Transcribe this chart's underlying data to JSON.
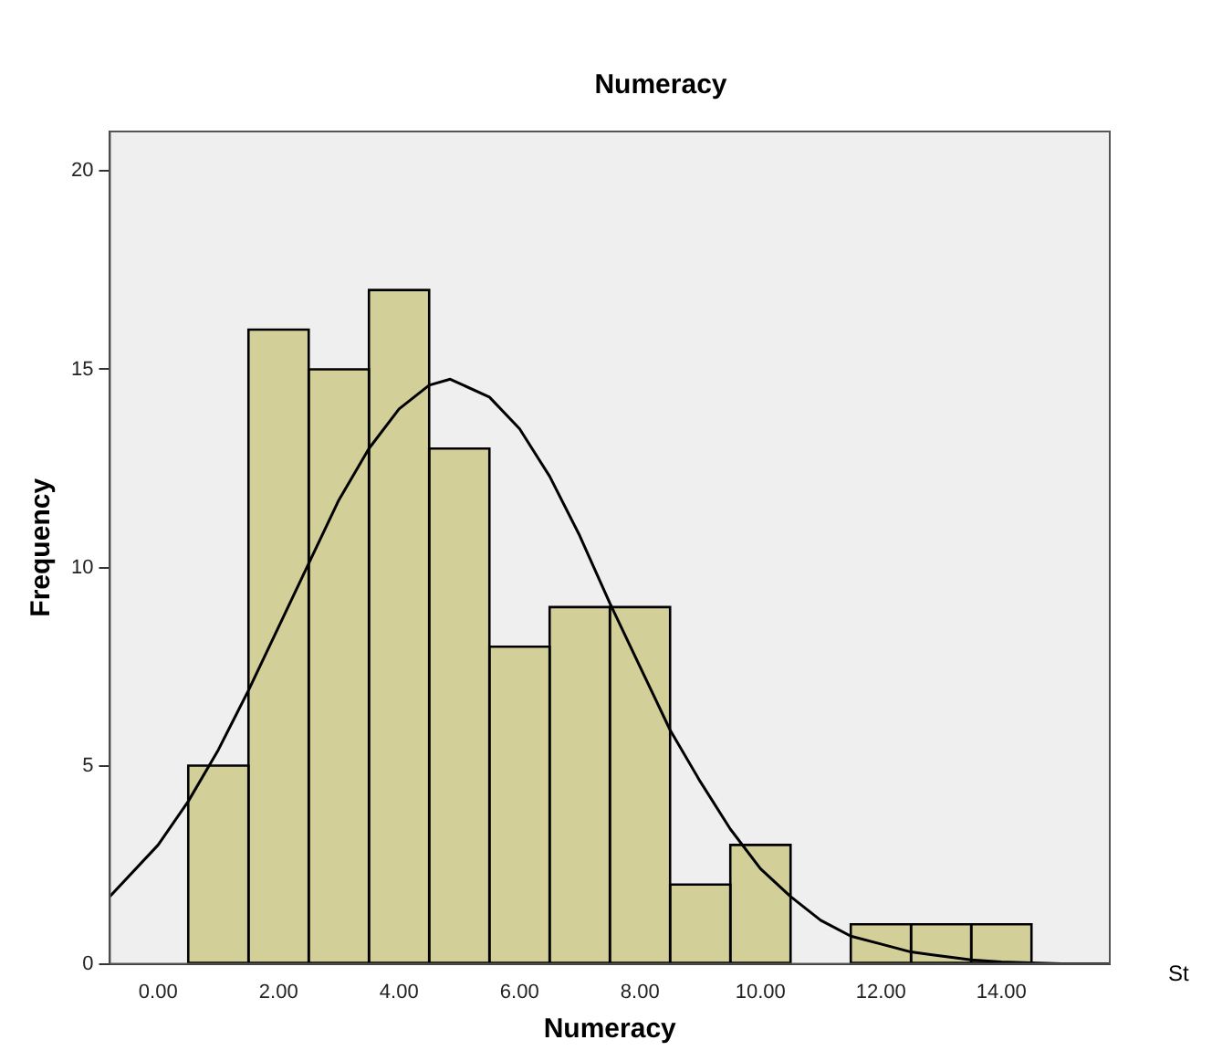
{
  "chart_data": {
    "type": "histogram",
    "title": "Numeracy",
    "xlabel": "Numeracy",
    "ylabel": "Frequency",
    "bins": [
      0.5,
      1.5,
      2.5,
      3.5,
      4.5,
      5.5,
      6.5,
      7.5,
      8.5,
      9.5,
      10.5,
      11.5,
      12.5,
      13.5,
      14.5
    ],
    "values": [
      5,
      16,
      15,
      17,
      13,
      8,
      9,
      9,
      2,
      3,
      0,
      1,
      1,
      1
    ],
    "color": "#d3cf98",
    "series": [
      {
        "type": "line",
        "color": "#000000",
        "x": [
          -0.8,
          0,
          0.5,
          1,
          1.5,
          2,
          2.5,
          3,
          3.5,
          4,
          4.5,
          4.85,
          5.5,
          6,
          6.5,
          7,
          7.5,
          8,
          8.5,
          9,
          9.5,
          10,
          10.5,
          11,
          11.5,
          12,
          12.5,
          13,
          13.5,
          14,
          15,
          15.8
        ],
        "values": [
          1.7,
          3.0,
          4.1,
          5.4,
          6.9,
          8.5,
          10.1,
          11.7,
          13.0,
          14.0,
          14.6,
          14.75,
          14.3,
          13.5,
          12.3,
          10.8,
          9.1,
          7.5,
          5.9,
          4.6,
          3.4,
          2.4,
          1.7,
          1.1,
          0.7,
          0.5,
          0.3,
          0.2,
          0.1,
          0.05,
          0,
          0
        ]
      }
    ],
    "xlim": [
      -0.8,
      15.8
    ],
    "xticks": [
      {
        "value": 0,
        "label": "0.00"
      },
      {
        "value": 2,
        "label": "2.00"
      },
      {
        "value": 4,
        "label": "4.00"
      },
      {
        "value": 6,
        "label": "6.00"
      },
      {
        "value": 8,
        "label": "8.00"
      },
      {
        "value": 10,
        "label": "10.00"
      },
      {
        "value": 12,
        "label": "12.00"
      },
      {
        "value": 14,
        "label": "14.00"
      }
    ],
    "ylim": [
      0,
      21
    ],
    "yticks": [
      0,
      5,
      10,
      15,
      20
    ],
    "grid": false,
    "legend": false,
    "annotations": [
      "St"
    ]
  }
}
